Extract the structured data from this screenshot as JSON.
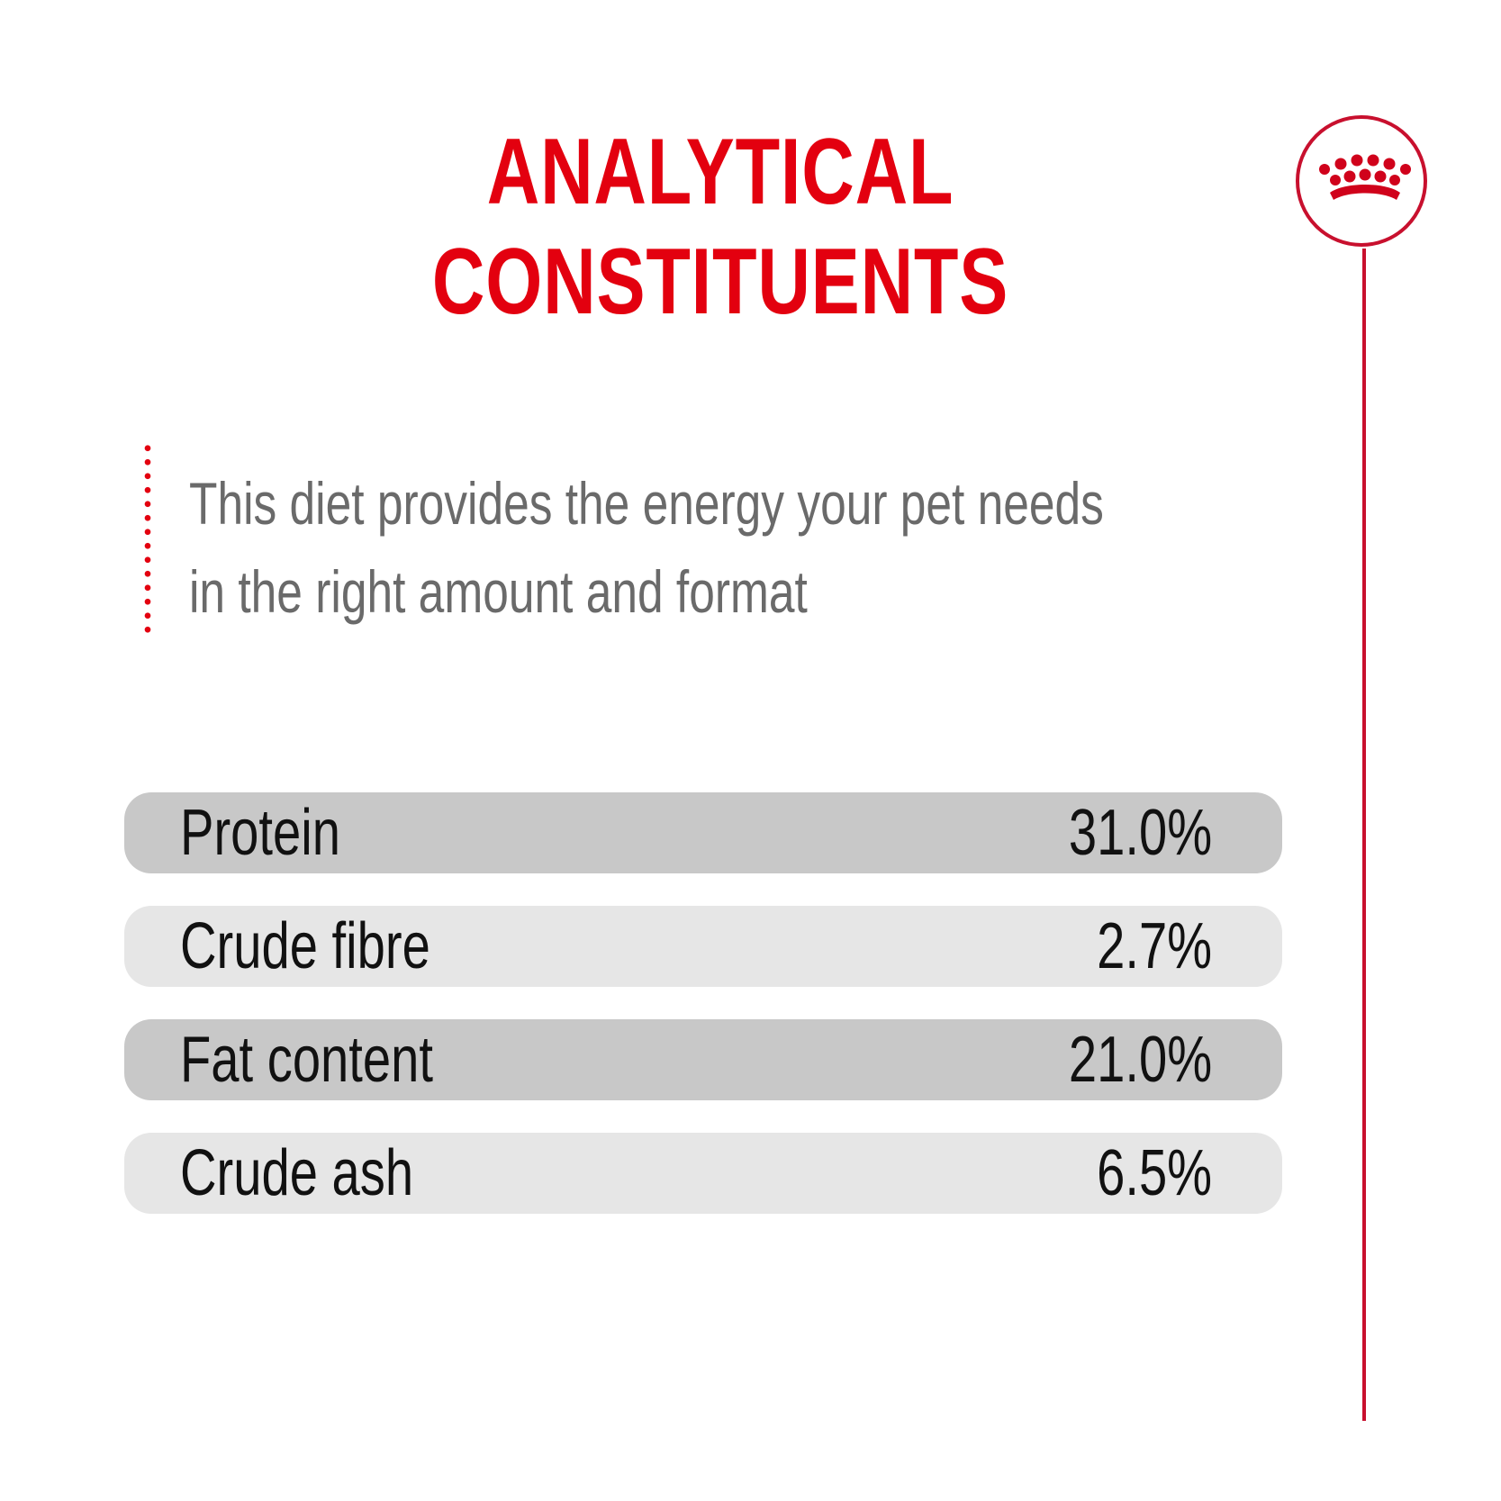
{
  "title": {
    "line1": "ANALYTICAL",
    "line2": "CONSTITUENTS"
  },
  "intro": {
    "line1": "This diet provides the energy your pet needs",
    "line2": "in the right amount and format"
  },
  "constituents": [
    {
      "label": "Protein",
      "value": "31.0%"
    },
    {
      "label": "Crude fibre",
      "value": "2.7%"
    },
    {
      "label": "Fat content",
      "value": "21.0%"
    },
    {
      "label": "Crude ash",
      "value": "6.5%"
    }
  ],
  "brand": {
    "logo_icon": "crown-icon",
    "accent_color": "#e3000f",
    "row_dark_color": "#c8c8c8",
    "row_light_color": "#e6e6e6"
  }
}
